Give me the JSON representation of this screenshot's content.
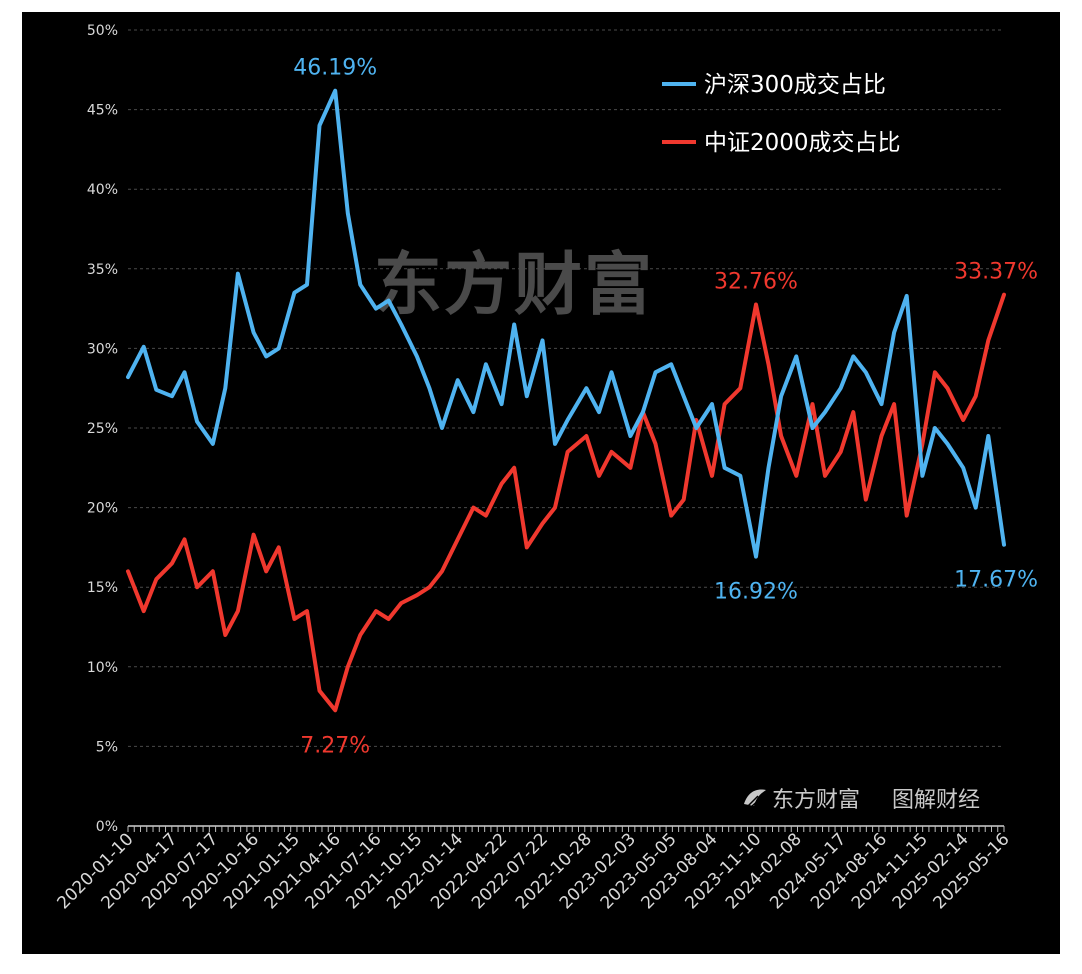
{
  "chart_data": {
    "type": "line",
    "title": "",
    "xlabel": "",
    "ylabel": "",
    "ylim": [
      0,
      50
    ],
    "y_ticks": [
      "0%",
      "5%",
      "10%",
      "15%",
      "20%",
      "25%",
      "30%",
      "35%",
      "40%",
      "45%",
      "50%"
    ],
    "x_ticks": [
      "2020-01-10",
      "2020-04-17",
      "2020-07-17",
      "2020-10-16",
      "2021-01-15",
      "2021-04-16",
      "2021-07-16",
      "2021-10-15",
      "2022-01-14",
      "2022-04-22",
      "2022-07-22",
      "2022-10-28",
      "2023-02-03",
      "2023-05-05",
      "2023-08-04",
      "2023-11-10",
      "2024-02-08",
      "2024-05-17",
      "2024-08-16",
      "2024-11-15",
      "2025-02-14",
      "2025-05-16"
    ],
    "grid": "horizontal dashed",
    "legend_position": "top-right",
    "series": [
      {
        "name": "沪深300成交占比",
        "color": "#4fb3f0",
        "x": [
          "2020-01-10",
          "2020-02-14",
          "2020-03-13",
          "2020-04-17",
          "2020-05-15",
          "2020-06-12",
          "2020-07-17",
          "2020-08-14",
          "2020-09-11",
          "2020-10-16",
          "2020-11-13",
          "2020-12-11",
          "2021-01-15",
          "2021-02-12",
          "2021-03-12",
          "2021-04-16",
          "2021-05-14",
          "2021-06-11",
          "2021-07-16",
          "2021-08-13",
          "2021-09-10",
          "2021-10-15",
          "2021-11-12",
          "2021-12-10",
          "2022-01-14",
          "2022-02-18",
          "2022-03-18",
          "2022-04-22",
          "2022-05-20",
          "2022-06-17",
          "2022-07-22",
          "2022-08-19",
          "2022-09-16",
          "2022-10-28",
          "2022-11-25",
          "2022-12-23",
          "2023-02-03",
          "2023-03-03",
          "2023-03-31",
          "2023-05-05",
          "2023-06-02",
          "2023-06-30",
          "2023-08-04",
          "2023-09-01",
          "2023-10-06",
          "2023-11-10",
          "2023-12-08",
          "2024-01-05",
          "2024-02-08",
          "2024-03-15",
          "2024-04-12",
          "2024-05-17",
          "2024-06-14",
          "2024-07-12",
          "2024-08-16",
          "2024-09-13",
          "2024-10-11",
          "2024-11-15",
          "2024-12-13",
          "2025-01-10",
          "2025-02-14",
          "2025-03-14",
          "2025-04-11",
          "2025-05-16"
        ],
        "values": [
          28.2,
          30.1,
          27.4,
          27.0,
          28.5,
          25.4,
          24.0,
          27.5,
          34.7,
          31.0,
          29.5,
          30.0,
          33.5,
          34.0,
          44.0,
          46.19,
          38.5,
          34.0,
          32.5,
          33.0,
          31.5,
          29.5,
          27.5,
          25.0,
          28.0,
          26.0,
          29.0,
          26.5,
          31.5,
          27.0,
          30.5,
          24.0,
          25.5,
          27.5,
          26.0,
          28.5,
          24.5,
          26.0,
          28.5,
          29.0,
          27.0,
          25.0,
          26.5,
          22.5,
          22.0,
          16.92,
          22.5,
          27.0,
          29.5,
          25.0,
          26.0,
          27.5,
          29.5,
          28.5,
          26.5,
          31.0,
          33.3,
          22.0,
          25.0,
          24.0,
          22.5,
          20.0,
          24.5,
          17.67
        ]
      },
      {
        "name": "中证2000成交占比",
        "color": "#f0382e",
        "x": [
          "2020-01-10",
          "2020-02-14",
          "2020-03-13",
          "2020-04-17",
          "2020-05-15",
          "2020-06-12",
          "2020-07-17",
          "2020-08-14",
          "2020-09-11",
          "2020-10-16",
          "2020-11-13",
          "2020-12-11",
          "2021-01-15",
          "2021-02-12",
          "2021-03-12",
          "2021-04-16",
          "2021-05-14",
          "2021-06-11",
          "2021-07-16",
          "2021-08-13",
          "2021-09-10",
          "2021-10-15",
          "2021-11-12",
          "2021-12-10",
          "2022-01-14",
          "2022-02-18",
          "2022-03-18",
          "2022-04-22",
          "2022-05-20",
          "2022-06-17",
          "2022-07-22",
          "2022-08-19",
          "2022-09-16",
          "2022-10-28",
          "2022-11-25",
          "2022-12-23",
          "2023-02-03",
          "2023-03-03",
          "2023-03-31",
          "2023-05-05",
          "2023-06-02",
          "2023-06-30",
          "2023-08-04",
          "2023-09-01",
          "2023-10-06",
          "2023-11-10",
          "2023-12-08",
          "2024-01-05",
          "2024-02-08",
          "2024-03-15",
          "2024-04-12",
          "2024-05-17",
          "2024-06-14",
          "2024-07-12",
          "2024-08-16",
          "2024-09-13",
          "2024-10-11",
          "2024-11-15",
          "2024-12-13",
          "2025-01-10",
          "2025-02-14",
          "2025-03-14",
          "2025-04-11",
          "2025-05-16"
        ],
        "values": [
          16.0,
          13.5,
          15.5,
          16.5,
          18.0,
          15.0,
          16.0,
          12.0,
          13.5,
          18.3,
          16.0,
          17.5,
          13.0,
          13.5,
          8.5,
          7.27,
          10.0,
          12.0,
          13.5,
          13.0,
          14.0,
          14.5,
          15.0,
          16.0,
          18.0,
          20.0,
          19.5,
          21.5,
          22.5,
          17.5,
          19.0,
          20.0,
          23.5,
          24.5,
          22.0,
          23.5,
          22.5,
          26.0,
          24.0,
          19.5,
          20.5,
          25.5,
          22.0,
          26.5,
          27.5,
          32.76,
          29.0,
          24.5,
          22.0,
          26.5,
          22.0,
          23.5,
          26.0,
          20.5,
          24.5,
          26.5,
          19.5,
          24.0,
          28.5,
          27.5,
          25.5,
          27.0,
          30.5,
          33.37
        ]
      }
    ],
    "annotations": [
      {
        "text": "46.19%",
        "series": 0,
        "at": "2021-04-16"
      },
      {
        "text": "16.92%",
        "series": 0,
        "at": "2023-11-10"
      },
      {
        "text": "17.67%",
        "series": 0,
        "at": "2025-05-16"
      },
      {
        "text": "7.27%",
        "series": 1,
        "at": "2021-04-16"
      },
      {
        "text": "32.76%",
        "series": 1,
        "at": "2023-11-10"
      },
      {
        "text": "33.37%",
        "series": 1,
        "at": "2025-05-16"
      }
    ]
  },
  "watermark": "东方财富",
  "brand": {
    "logo": "东方财富",
    "column": "图解财经",
    "icon": "feather-logo-icon"
  }
}
